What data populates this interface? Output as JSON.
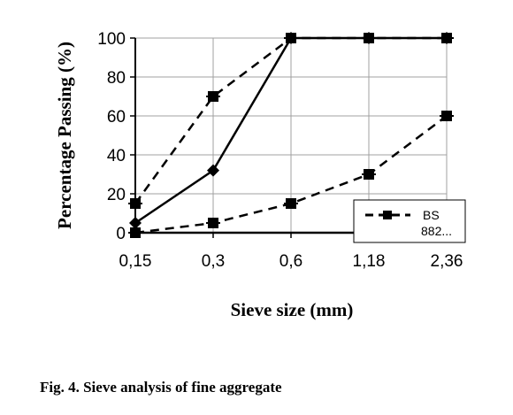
{
  "chart_data": {
    "type": "line",
    "xlabel": "Sieve size (mm)",
    "ylabel": "Percentage Passing (%)",
    "categories": [
      "0,15",
      "0,3",
      "0,6",
      "1,18",
      "2,36"
    ],
    "ylim": [
      0,
      100
    ],
    "yticks": [
      0,
      20,
      40,
      60,
      80,
      100
    ],
    "grid": true,
    "legend": {
      "placement": "bottom-right",
      "entries": [
        {
          "label_line1": "BS",
          "label_line2": "882..."
        }
      ]
    },
    "series": [
      {
        "style": "dashed",
        "marker": "square",
        "values": [
          15,
          70,
          100,
          100,
          100
        ]
      },
      {
        "style": "solid",
        "marker": "diamond",
        "values": [
          5,
          32,
          100,
          100,
          100
        ]
      },
      {
        "style": "dashed",
        "marker": "square",
        "values": [
          0,
          5,
          15,
          30,
          60
        ]
      }
    ]
  },
  "caption": "Fig. 4. Sieve analysis of fine aggregate"
}
